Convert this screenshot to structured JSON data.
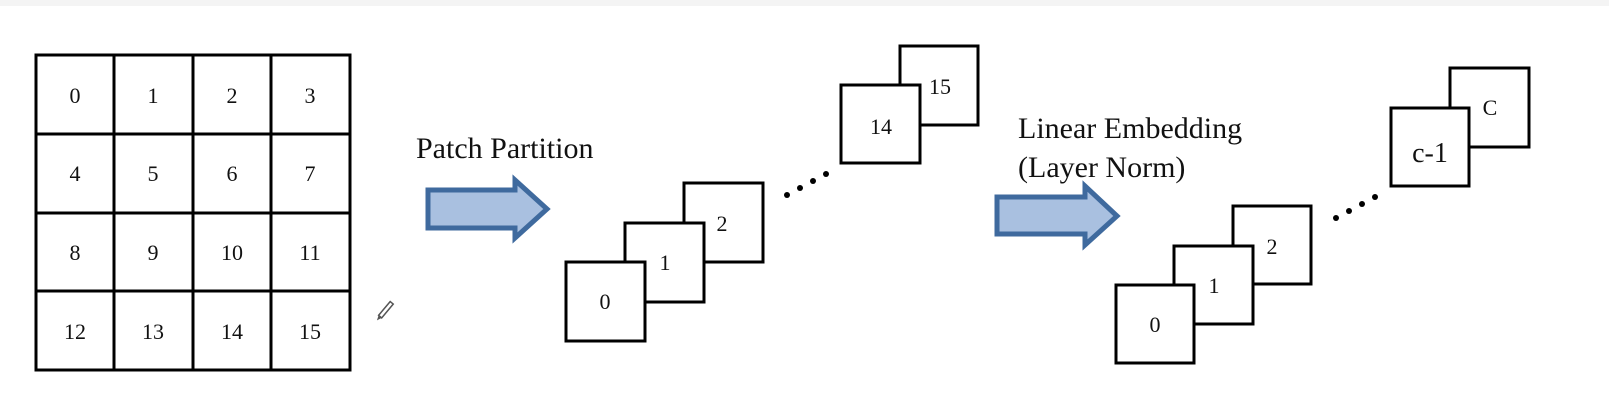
{
  "grid": {
    "cells": [
      "0",
      "1",
      "2",
      "3",
      "4",
      "5",
      "6",
      "7",
      "8",
      "9",
      "10",
      "11",
      "12",
      "13",
      "14",
      "15"
    ]
  },
  "patch_partition": {
    "label": "Patch Partition",
    "patches": [
      "0",
      "1",
      "2",
      "14",
      "15"
    ]
  },
  "linear_embedding": {
    "label_line1": "Linear Embedding",
    "label_line2": "(Layer Norm)",
    "channels": [
      "0",
      "1",
      "2",
      "c-1",
      "C"
    ]
  },
  "colors": {
    "arrow_fill": "#a9c0e0",
    "arrow_stroke": "#3f6a9e",
    "line": "#000000"
  }
}
